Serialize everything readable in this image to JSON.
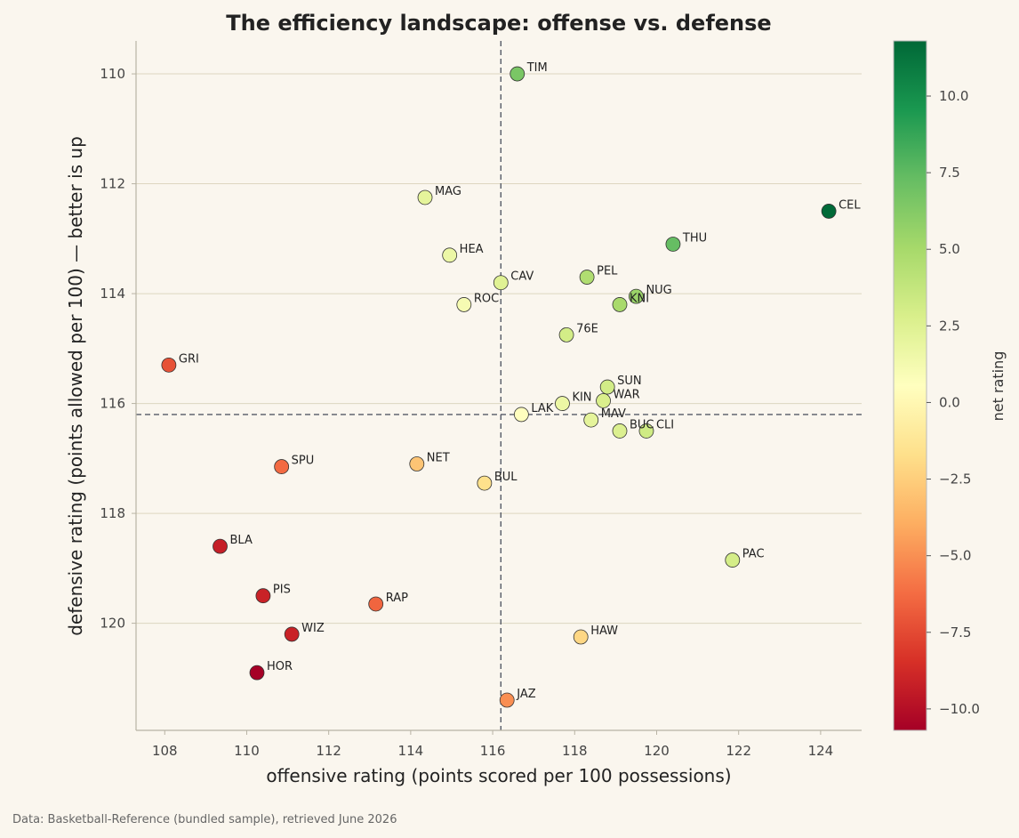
{
  "chart_data": {
    "type": "scatter",
    "title": "The efficiency landscape: offense vs. defense",
    "xlabel": "offensive rating (points scored per 100 possessions)",
    "ylabel": "defensive rating (points allowed per 100)  —  better is up",
    "xlim": [
      107.3,
      125.0
    ],
    "ylim": [
      121.95,
      109.4
    ],
    "y_inverted": true,
    "x_ticks": [
      108,
      110,
      112,
      114,
      116,
      118,
      120,
      122,
      124
    ],
    "y_ticks": [
      110,
      112,
      114,
      116,
      118,
      120
    ],
    "grid": "horizontal",
    "reference_lines": {
      "x": 116.2,
      "y": 116.2
    },
    "colorbar": {
      "label": "net rating",
      "range": [
        -10.7,
        11.8
      ],
      "ticks": [
        10.0,
        7.5,
        5.0,
        2.5,
        0.0,
        -2.5,
        -5.0,
        -7.5,
        -10.0
      ],
      "colormap": "RdYlGn"
    },
    "points": [
      {
        "label": "TIM",
        "x": 116.6,
        "y": 110.0,
        "net": 6.6
      },
      {
        "label": "MAG",
        "x": 114.35,
        "y": 112.25,
        "net": 2.1
      },
      {
        "label": "CEL",
        "x": 124.2,
        "y": 112.5,
        "net": 11.7
      },
      {
        "label": "THU",
        "x": 120.4,
        "y": 113.1,
        "net": 7.3
      },
      {
        "label": "HEA",
        "x": 114.95,
        "y": 113.3,
        "net": 1.65
      },
      {
        "label": "PEL",
        "x": 118.3,
        "y": 113.7,
        "net": 4.6
      },
      {
        "label": "CAV",
        "x": 116.2,
        "y": 113.8,
        "net": 2.4
      },
      {
        "label": "NUG",
        "x": 119.5,
        "y": 114.05,
        "net": 5.45
      },
      {
        "label": "KNI",
        "x": 119.1,
        "y": 114.2,
        "net": 4.9
      },
      {
        "label": "ROC",
        "x": 115.3,
        "y": 114.2,
        "net": 1.1
      },
      {
        "label": "76E",
        "x": 117.8,
        "y": 114.75,
        "net": 3.05
      },
      {
        "label": "GRI",
        "x": 108.1,
        "y": 115.3,
        "net": -7.2
      },
      {
        "label": "SUN",
        "x": 118.8,
        "y": 115.7,
        "net": 3.1
      },
      {
        "label": "WAR",
        "x": 118.7,
        "y": 115.95,
        "net": 2.75
      },
      {
        "label": "KIN",
        "x": 117.7,
        "y": 116.0,
        "net": 1.7
      },
      {
        "label": "LAK",
        "x": 116.7,
        "y": 116.2,
        "net": 0.5
      },
      {
        "label": "MAV",
        "x": 118.4,
        "y": 116.3,
        "net": 2.1
      },
      {
        "label": "BUC",
        "x": 119.1,
        "y": 116.5,
        "net": 2.6
      },
      {
        "label": "CLI",
        "x": 119.75,
        "y": 116.5,
        "net": 3.25
      },
      {
        "label": "NET",
        "x": 114.15,
        "y": 117.1,
        "net": -2.95
      },
      {
        "label": "SPU",
        "x": 110.85,
        "y": 117.15,
        "net": -6.3
      },
      {
        "label": "BUL",
        "x": 115.8,
        "y": 117.45,
        "net": -1.65
      },
      {
        "label": "BLA",
        "x": 109.35,
        "y": 118.6,
        "net": -9.25
      },
      {
        "label": "PAC",
        "x": 121.85,
        "y": 118.85,
        "net": 3.0
      },
      {
        "label": "PIS",
        "x": 110.4,
        "y": 119.5,
        "net": -9.1
      },
      {
        "label": "RAP",
        "x": 113.15,
        "y": 119.65,
        "net": -6.5
      },
      {
        "label": "WIZ",
        "x": 111.1,
        "y": 120.2,
        "net": -9.1
      },
      {
        "label": "HAW",
        "x": 118.15,
        "y": 120.25,
        "net": -2.1
      },
      {
        "label": "HOR",
        "x": 110.25,
        "y": 120.9,
        "net": -10.65
      },
      {
        "label": "JAZ",
        "x": 116.35,
        "y": 121.4,
        "net": -5.05
      }
    ]
  },
  "source_note": "Data: Basketball-Reference (bundled sample), retrieved June 2026"
}
